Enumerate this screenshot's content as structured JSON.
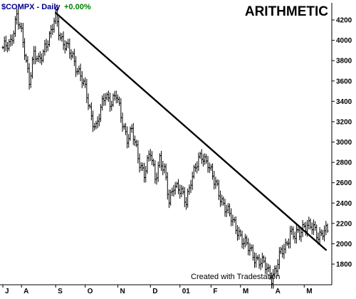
{
  "header": {
    "symbol_label": "$COMPX - Daily",
    "change_label": "+0.00%",
    "scale_label": "ARITHMETIC"
  },
  "footer": {
    "credit": "Created with Tradestation"
  },
  "colors": {
    "symbol": "#00008b",
    "change": "#008000",
    "bars": "#000000",
    "trendline": "#000000",
    "axes": "#000000",
    "background": "#ffffff"
  },
  "chart_data": {
    "type": "ohlc",
    "title": "$COMPX - Daily",
    "scale": "arithmetic",
    "xlabel": "",
    "ylabel": "",
    "ylim": [
      1580,
      4330
    ],
    "y_ticks": [
      1800,
      2000,
      2200,
      2400,
      2600,
      2800,
      3000,
      3200,
      3400,
      3600,
      3800,
      4000,
      4200
    ],
    "y_tick_labels": [
      "1800",
      "2000",
      "2200",
      "2400",
      "2600",
      "2800",
      "3000",
      "3200",
      "3400",
      "3600",
      "3800",
      "4000",
      "4200"
    ],
    "x_months": [
      {
        "label": "J",
        "index": 0
      },
      {
        "label": "A",
        "index": 12
      },
      {
        "label": "S",
        "index": 34
      },
      {
        "label": "O",
        "index": 53
      },
      {
        "label": "N",
        "index": 74
      },
      {
        "label": "D",
        "index": 95
      },
      {
        "label": "01",
        "index": 114
      },
      {
        "label": "F",
        "index": 134
      },
      {
        "label": "M",
        "index": 153
      },
      {
        "label": "A",
        "index": 174
      },
      {
        "label": "M",
        "index": 194
      }
    ],
    "x_count": 210,
    "grid": false,
    "anchors": [
      [
        0,
        3900
      ],
      [
        5,
        4000
      ],
      [
        9,
        4230
      ],
      [
        12,
        4050
      ],
      [
        14,
        3900
      ],
      [
        17,
        3620
      ],
      [
        20,
        3850
      ],
      [
        23,
        3780
      ],
      [
        27,
        3950
      ],
      [
        31,
        4050
      ],
      [
        34,
        4250
      ],
      [
        37,
        4050
      ],
      [
        40,
        3950
      ],
      [
        45,
        3830
      ],
      [
        50,
        3660
      ],
      [
        53,
        3500
      ],
      [
        57,
        3260
      ],
      [
        60,
        3150
      ],
      [
        63,
        3300
      ],
      [
        66,
        3470
      ],
      [
        70,
        3400
      ],
      [
        73,
        3450
      ],
      [
        76,
        3250
      ],
      [
        80,
        3050
      ],
      [
        83,
        3100
      ],
      [
        87,
        2850
      ],
      [
        91,
        2700
      ],
      [
        95,
        2880
      ],
      [
        98,
        2650
      ],
      [
        101,
        2850
      ],
      [
        104,
        2700
      ],
      [
        107,
        2400
      ],
      [
        110,
        2600
      ],
      [
        113,
        2550
      ],
      [
        116,
        2450
      ],
      [
        118,
        2400
      ],
      [
        121,
        2650
      ],
      [
        124,
        2750
      ],
      [
        128,
        2850
      ],
      [
        132,
        2820
      ],
      [
        136,
        2600
      ],
      [
        140,
        2460
      ],
      [
        144,
        2350
      ],
      [
        148,
        2200
      ],
      [
        152,
        2120
      ],
      [
        155,
        2020
      ],
      [
        158,
        1950
      ],
      [
        162,
        1880
      ],
      [
        166,
        1820
      ],
      [
        170,
        1750
      ],
      [
        173,
        1680
      ],
      [
        176,
        1760
      ],
      [
        179,
        1900
      ],
      [
        182,
        1980
      ],
      [
        185,
        2130
      ],
      [
        188,
        2060
      ],
      [
        191,
        2100
      ],
      [
        194,
        2200
      ],
      [
        197,
        2180
      ],
      [
        200,
        2130
      ],
      [
        203,
        2080
      ],
      [
        206,
        2140
      ]
    ],
    "trendline": {
      "start": {
        "x": 34,
        "y": 4270
      },
      "end": {
        "x": 208,
        "y": 1940
      }
    }
  }
}
